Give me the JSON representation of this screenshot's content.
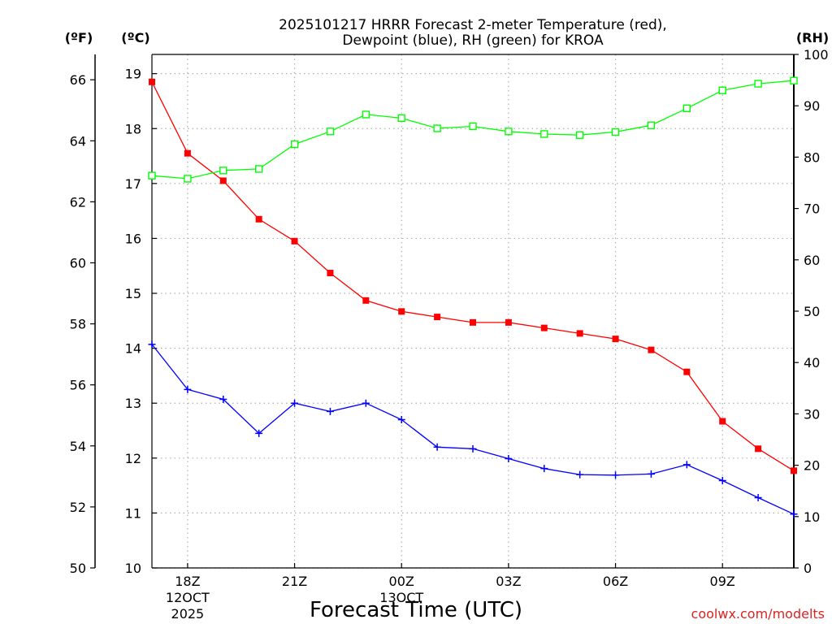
{
  "chart_data": {
    "type": "line",
    "title_line1": "2025101217 HRRR Forecast 2-meter Temperature (red),",
    "title_line2": "Dewpoint (blue), RH (green) for KROA",
    "xlabel": "Forecast Time (UTC)",
    "credit": "coolwx.com/modelts",
    "unit_f": "(ºF)",
    "unit_c": "(ºC)",
    "unit_rh": "(RH)",
    "x_hours": [
      17,
      18,
      19,
      20,
      21,
      22,
      23,
      24,
      25,
      26,
      27,
      28,
      29,
      30,
      31,
      32,
      33,
      34,
      35
    ],
    "x_range": [
      17,
      35
    ],
    "x_ticks": [
      {
        "hour": 18,
        "label": "18Z",
        "sub1": "12OCT",
        "sub2": "2025"
      },
      {
        "hour": 21,
        "label": "21Z",
        "sub1": "",
        "sub2": ""
      },
      {
        "hour": 24,
        "label": "00Z",
        "sub1": "13OCT",
        "sub2": ""
      },
      {
        "hour": 27,
        "label": "03Z",
        "sub1": "",
        "sub2": ""
      },
      {
        "hour": 30,
        "label": "06Z",
        "sub1": "",
        "sub2": ""
      },
      {
        "hour": 33,
        "label": "09Z",
        "sub1": "",
        "sub2": ""
      }
    ],
    "y_celsius_range": [
      10,
      19.35
    ],
    "y_celsius_ticks": [
      10,
      11,
      12,
      13,
      14,
      15,
      16,
      17,
      18,
      19
    ],
    "y_fahrenheit_ticks": [
      50,
      52,
      54,
      56,
      58,
      60,
      62,
      64,
      66
    ],
    "y_rh_range": [
      0,
      100
    ],
    "y_rh_ticks": [
      0,
      10,
      20,
      30,
      40,
      50,
      60,
      70,
      80,
      90,
      100
    ],
    "grid": true,
    "series": [
      {
        "name": "2-meter Temperature",
        "color": "#ff0000",
        "marker": "filled-square",
        "axis": "celsius",
        "values": [
          18.85,
          17.55,
          17.05,
          16.35,
          15.95,
          15.37,
          14.87,
          14.67,
          14.57,
          14.47,
          14.47,
          14.37,
          14.27,
          14.17,
          13.97,
          13.57,
          12.67,
          12.17,
          11.77
        ]
      },
      {
        "name": "Dewpoint",
        "color": "#0000ff",
        "marker": "plus",
        "axis": "celsius",
        "values": [
          14.07,
          13.25,
          13.07,
          12.45,
          13.0,
          12.85,
          13.0,
          12.7,
          12.2,
          12.17,
          11.99,
          11.81,
          11.7,
          11.69,
          11.71,
          11.88,
          11.59,
          11.28,
          10.98
        ]
      },
      {
        "name": "Relative Humidity",
        "color": "#00ff00",
        "marker": "open-square",
        "axis": "rh",
        "values": [
          76.4,
          75.8,
          77.4,
          77.7,
          82.5,
          85.0,
          88.3,
          87.6,
          85.6,
          86.0,
          85.0,
          84.5,
          84.3,
          84.9,
          86.2,
          89.5,
          93.0,
          94.3,
          94.9
        ]
      }
    ]
  }
}
